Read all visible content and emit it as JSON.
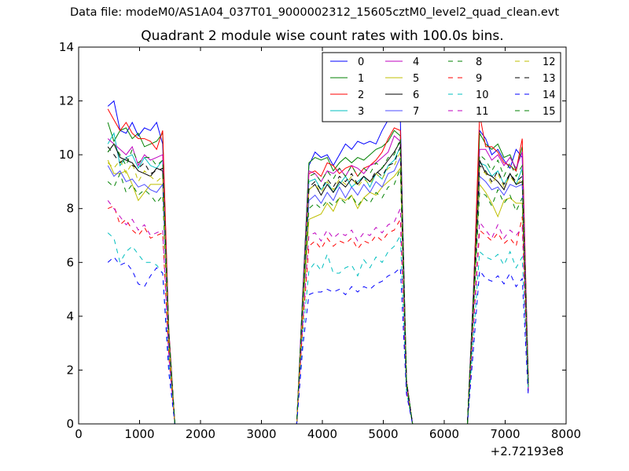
{
  "figure": {
    "suptitle": "Data file: modeM0/AS1A04_037T01_9000002312_15605cztM0_level2_quad_clean.evt"
  },
  "chart_data": {
    "type": "line",
    "title": "Quadrant 2 module wise count rates with 100.0s bins.",
    "xlabel": "",
    "ylabel": "",
    "x_offset_label": "+2.72193e8",
    "xlim": [
      0,
      8000
    ],
    "ylim": [
      0,
      14
    ],
    "xticks": [
      0,
      1000,
      2000,
      3000,
      4000,
      5000,
      6000,
      7000,
      8000
    ],
    "yticks": [
      0,
      2,
      4,
      6,
      8,
      10,
      12,
      14
    ],
    "legend_location": "top-right",
    "legend_columns": 4,
    "x": [
      480,
      580,
      680,
      780,
      880,
      980,
      1080,
      1180,
      1280,
      1380,
      1480,
      1580,
      1680,
      1780,
      1880,
      1980,
      2080,
      2180,
      2280,
      2380,
      2480,
      2580,
      2680,
      2780,
      2880,
      2980,
      3080,
      3180,
      3280,
      3380,
      3480,
      3580,
      3680,
      3780,
      3880,
      3980,
      4080,
      4180,
      4280,
      4380,
      4480,
      4580,
      4680,
      4780,
      4880,
      4980,
      5080,
      5180,
      5280,
      5380,
      5480,
      5580,
      5680,
      5780,
      5880,
      5980,
      6080,
      6180,
      6280,
      6380,
      6480,
      6580,
      6680,
      6780,
      6880,
      6980,
      7080,
      7180,
      7280,
      7380
    ],
    "series": [
      {
        "name": "0",
        "color": "#0000ff",
        "style": "solid",
        "values": [
          11.8,
          12.0,
          10.9,
          10.8,
          11.2,
          10.7,
          11.0,
          10.9,
          11.2,
          10.4,
          3.5,
          0,
          0,
          0,
          0,
          0,
          0,
          0,
          0,
          0,
          0,
          0,
          0,
          0,
          0,
          0,
          0,
          0,
          0,
          0,
          0,
          0,
          5.0,
          9.6,
          10.1,
          9.9,
          10.0,
          9.6,
          10.0,
          10.4,
          10.2,
          10.5,
          10.4,
          10.5,
          10.4,
          10.9,
          11.3,
          11.6,
          11.3,
          1.6,
          0,
          0,
          0,
          0,
          0,
          0,
          0,
          0,
          0,
          0,
          5.0,
          10.9,
          10.6,
          10.0,
          10.2,
          9.8,
          9.5,
          10.2,
          9.9,
          1.5
        ]
      },
      {
        "name": "1",
        "color": "#008000",
        "style": "solid",
        "values": [
          11.2,
          10.5,
          10.9,
          11.0,
          10.6,
          10.8,
          10.3,
          10.4,
          10.5,
          10.8,
          3.4,
          0,
          0,
          0,
          0,
          0,
          0,
          0,
          0,
          0,
          0,
          0,
          0,
          0,
          0,
          0,
          0,
          0,
          0,
          0,
          0,
          0,
          4.9,
          9.7,
          9.9,
          9.8,
          9.9,
          9.4,
          9.7,
          9.9,
          9.7,
          9.9,
          9.8,
          10.0,
          10.2,
          10.3,
          10.5,
          10.9,
          10.7,
          1.6,
          0,
          0,
          0,
          0,
          0,
          0,
          0,
          0,
          0,
          0,
          4.9,
          10.8,
          10.4,
          10.2,
          10.4,
          9.9,
          10.0,
          9.4,
          10.3,
          1.5
        ]
      },
      {
        "name": "2",
        "color": "#ff0000",
        "style": "solid",
        "values": [
          11.7,
          11.3,
          10.9,
          11.2,
          10.8,
          10.6,
          10.6,
          10.5,
          10.2,
          10.9,
          3.5,
          0,
          0,
          0,
          0,
          0,
          0,
          0,
          0,
          0,
          0,
          0,
          0,
          0,
          0,
          0,
          0,
          0,
          0,
          0,
          0,
          0,
          4.8,
          9.3,
          9.4,
          9.2,
          9.7,
          9.6,
          9.3,
          9.5,
          9.6,
          9.2,
          9.5,
          9.6,
          9.8,
          10.1,
          10.6,
          11.0,
          10.9,
          1.6,
          0,
          0,
          0,
          0,
          0,
          0,
          0,
          0,
          0,
          0,
          4.8,
          11.5,
          10.3,
          10.3,
          10.1,
          9.7,
          9.6,
          9.4,
          10.6,
          1.5
        ]
      },
      {
        "name": "3",
        "color": "#00bfbf",
        "style": "solid",
        "values": [
          10.4,
          10.8,
          9.6,
          9.9,
          10.0,
          9.5,
          9.9,
          9.6,
          9.5,
          9.8,
          3.3,
          0,
          0,
          0,
          0,
          0,
          0,
          0,
          0,
          0,
          0,
          0,
          0,
          0,
          0,
          0,
          0,
          0,
          0,
          0,
          0,
          0,
          4.7,
          9.0,
          9.1,
          8.7,
          9.0,
          8.6,
          8.9,
          9.2,
          8.8,
          9.0,
          9.2,
          8.8,
          9.3,
          9.1,
          9.6,
          9.8,
          10.3,
          1.5,
          0,
          0,
          0,
          0,
          0,
          0,
          0,
          0,
          0,
          0,
          4.6,
          9.7,
          9.6,
          9.2,
          9.4,
          8.9,
          9.3,
          8.9,
          9.5,
          1.4
        ]
      },
      {
        "name": "4",
        "color": "#bf00bf",
        "style": "solid",
        "values": [
          10.6,
          10.4,
          10.2,
          10.0,
          10.3,
          9.6,
          10.0,
          9.8,
          9.9,
          10.0,
          3.4,
          0,
          0,
          0,
          0,
          0,
          0,
          0,
          0,
          0,
          0,
          0,
          0,
          0,
          0,
          0,
          0,
          0,
          0,
          0,
          0,
          0,
          4.8,
          9.4,
          9.3,
          9.0,
          9.4,
          9.3,
          9.5,
          9.2,
          9.6,
          9.5,
          9.3,
          9.6,
          9.7,
          9.9,
          10.1,
          10.7,
          10.5,
          1.6,
          0,
          0,
          0,
          0,
          0,
          0,
          0,
          0,
          0,
          0,
          4.7,
          10.2,
          10.2,
          9.8,
          10.0,
          9.6,
          9.9,
          9.5,
          10.1,
          1.5
        ]
      },
      {
        "name": "5",
        "color": "#bfbf00",
        "style": "solid",
        "values": [
          9.8,
          9.3,
          9.3,
          9.4,
          8.9,
          8.3,
          8.6,
          8.9,
          8.9,
          8.9,
          3.0,
          0,
          0,
          0,
          0,
          0,
          0,
          0,
          0,
          0,
          0,
          0,
          0,
          0,
          0,
          0,
          0,
          0,
          0,
          0,
          0,
          0,
          4.2,
          7.6,
          7.7,
          7.8,
          8.2,
          7.9,
          8.4,
          8.3,
          8.5,
          8.0,
          8.4,
          8.6,
          8.5,
          8.8,
          9.0,
          9.2,
          9.5,
          1.5,
          0,
          0,
          0,
          0,
          0,
          0,
          0,
          0,
          0,
          0,
          4.2,
          8.9,
          8.6,
          8.2,
          7.7,
          8.3,
          8.4,
          8.2,
          8.2,
          1.4
        ]
      },
      {
        "name": "6",
        "color": "#000000",
        "style": "solid",
        "values": [
          10.1,
          10.4,
          9.9,
          9.8,
          9.7,
          9.4,
          9.3,
          9.2,
          9.5,
          9.4,
          3.3,
          0,
          0,
          0,
          0,
          0,
          0,
          0,
          0,
          0,
          0,
          0,
          0,
          0,
          0,
          0,
          0,
          0,
          0,
          0,
          0,
          0,
          4.6,
          8.7,
          8.9,
          8.5,
          8.9,
          8.6,
          9.0,
          8.8,
          9.1,
          8.9,
          9.2,
          9.0,
          9.3,
          9.5,
          9.8,
          10.1,
          10.5,
          1.5,
          0,
          0,
          0,
          0,
          0,
          0,
          0,
          0,
          0,
          0,
          4.5,
          9.8,
          9.3,
          9.2,
          9.0,
          8.7,
          9.3,
          8.9,
          9.0,
          1.4
        ]
      },
      {
        "name": "7",
        "color": "#4b4bff",
        "style": "solid",
        "values": [
          9.6,
          9.2,
          9.4,
          9.0,
          9.1,
          8.8,
          8.9,
          8.7,
          8.6,
          8.9,
          3.1,
          0,
          0,
          0,
          0,
          0,
          0,
          0,
          0,
          0,
          0,
          0,
          0,
          0,
          0,
          0,
          0,
          0,
          0,
          0,
          0,
          0,
          4.4,
          8.3,
          8.5,
          8.2,
          8.6,
          8.3,
          8.8,
          8.4,
          8.8,
          8.5,
          8.9,
          8.6,
          9.0,
          8.8,
          9.3,
          9.4,
          9.9,
          1.5,
          0,
          0,
          0,
          0,
          0,
          0,
          0,
          0,
          0,
          0,
          4.3,
          9.2,
          9.0,
          8.7,
          8.8,
          8.5,
          8.9,
          8.8,
          8.9,
          1.4
        ]
      },
      {
        "name": "8",
        "color": "#008000",
        "style": "dashed",
        "values": [
          9.0,
          8.8,
          9.3,
          8.6,
          8.9,
          8.5,
          8.7,
          8.5,
          8.2,
          8.5,
          3.0,
          0,
          0,
          0,
          0,
          0,
          0,
          0,
          0,
          0,
          0,
          0,
          0,
          0,
          0,
          0,
          0,
          0,
          0,
          0,
          0,
          0,
          4.3,
          8.0,
          8.2,
          8.0,
          8.3,
          8.1,
          8.4,
          8.2,
          8.5,
          8.1,
          8.4,
          8.2,
          8.6,
          8.4,
          8.8,
          8.9,
          9.5,
          1.4,
          0,
          0,
          0,
          0,
          0,
          0,
          0,
          0,
          0,
          0,
          4.2,
          8.6,
          8.5,
          8.1,
          8.7,
          8.2,
          8.5,
          7.9,
          8.4,
          1.3
        ]
      },
      {
        "name": "9",
        "color": "#ff0000",
        "style": "dashed",
        "values": [
          8.0,
          8.1,
          7.4,
          7.6,
          7.2,
          7.0,
          7.3,
          6.9,
          7.0,
          7.1,
          2.5,
          0,
          0,
          0,
          0,
          0,
          0,
          0,
          0,
          0,
          0,
          0,
          0,
          0,
          0,
          0,
          0,
          0,
          0,
          0,
          0,
          0,
          3.7,
          6.6,
          6.8,
          6.5,
          6.9,
          6.6,
          6.8,
          6.7,
          6.9,
          6.5,
          6.8,
          6.7,
          7.0,
          6.8,
          7.1,
          7.2,
          7.6,
          1.3,
          0,
          0,
          0,
          0,
          0,
          0,
          0,
          0,
          0,
          0,
          3.6,
          7.2,
          7.0,
          6.8,
          7.1,
          6.7,
          6.9,
          6.6,
          7.7,
          1.2
        ]
      },
      {
        "name": "10",
        "color": "#00bfbf",
        "style": "dashed",
        "values": [
          7.1,
          6.9,
          6.0,
          6.4,
          6.6,
          6.3,
          6.0,
          6.0,
          5.9,
          5.6,
          2.3,
          0,
          0,
          0,
          0,
          0,
          0,
          0,
          0,
          0,
          0,
          0,
          0,
          0,
          0,
          0,
          0,
          0,
          0,
          0,
          0,
          0,
          3.3,
          5.7,
          6.0,
          5.7,
          6.3,
          5.6,
          5.6,
          5.8,
          5.9,
          5.5,
          6.1,
          5.8,
          6.2,
          6.0,
          6.4,
          6.6,
          7.0,
          1.2,
          0,
          0,
          0,
          0,
          0,
          0,
          0,
          0,
          0,
          0,
          3.2,
          6.4,
          6.2,
          6.1,
          6.3,
          5.9,
          6.4,
          5.8,
          6.2,
          1.1
        ]
      },
      {
        "name": "11",
        "color": "#bf00bf",
        "style": "dashed",
        "values": [
          8.3,
          8.0,
          7.7,
          7.4,
          7.6,
          7.2,
          7.4,
          7.0,
          7.1,
          7.2,
          2.6,
          0,
          0,
          0,
          0,
          0,
          0,
          0,
          0,
          0,
          0,
          0,
          0,
          0,
          0,
          0,
          0,
          0,
          0,
          0,
          0,
          0,
          3.8,
          7.0,
          7.1,
          6.8,
          7.2,
          6.9,
          7.1,
          7.0,
          7.2,
          6.8,
          7.1,
          7.0,
          7.3,
          7.1,
          7.4,
          7.5,
          8.0,
          1.3,
          0,
          0,
          0,
          0,
          0,
          0,
          0,
          0,
          0,
          0,
          3.7,
          7.5,
          7.2,
          6.9,
          7.4,
          6.9,
          7.2,
          7.0,
          7.3,
          1.2
        ]
      },
      {
        "name": "12",
        "color": "#bfbf00",
        "style": "dashed",
        "values": [
          9.7,
          9.5,
          9.8,
          9.3,
          9.7,
          9.0,
          9.4,
          9.2,
          9.0,
          9.2,
          3.2,
          0,
          0,
          0,
          0,
          0,
          0,
          0,
          0,
          0,
          0,
          0,
          0,
          0,
          0,
          0,
          0,
          0,
          0,
          0,
          0,
          0,
          4.5,
          8.7,
          8.9,
          8.6,
          9.0,
          8.7,
          9.1,
          8.9,
          9.2,
          8.8,
          9.1,
          8.9,
          9.3,
          9.1,
          9.5,
          9.6,
          10.1,
          1.5,
          0,
          0,
          0,
          0,
          0,
          0,
          0,
          0,
          0,
          0,
          4.4,
          9.5,
          9.3,
          8.9,
          9.3,
          8.8,
          9.2,
          8.9,
          9.1,
          1.4
        ]
      },
      {
        "name": "13",
        "color": "#000000",
        "style": "dashed",
        "values": [
          10.3,
          10.0,
          9.7,
          9.9,
          9.6,
          9.5,
          9.7,
          9.3,
          9.4,
          9.5,
          3.3,
          0,
          0,
          0,
          0,
          0,
          0,
          0,
          0,
          0,
          0,
          0,
          0,
          0,
          0,
          0,
          0,
          0,
          0,
          0,
          0,
          0,
          4.6,
          8.8,
          9.0,
          8.7,
          9.1,
          8.8,
          9.2,
          9.0,
          9.3,
          8.9,
          9.2,
          9.0,
          9.4,
          9.2,
          9.6,
          9.7,
          10.3,
          1.5,
          0,
          0,
          0,
          0,
          0,
          0,
          0,
          0,
          0,
          0,
          4.5,
          9.6,
          9.4,
          9.0,
          9.4,
          8.9,
          9.3,
          9.0,
          9.2,
          1.4
        ]
      },
      {
        "name": "14",
        "color": "#0000ff",
        "style": "dashed",
        "values": [
          6.0,
          6.2,
          5.9,
          6.0,
          5.7,
          5.2,
          5.1,
          5.5,
          5.8,
          5.6,
          1.9,
          0,
          0,
          0,
          0,
          0,
          0,
          0,
          0,
          0,
          0,
          0,
          0,
          0,
          0,
          0,
          0,
          0,
          0,
          0,
          0,
          0,
          2.9,
          4.8,
          4.9,
          4.9,
          5.0,
          4.9,
          5.0,
          4.8,
          5.1,
          4.9,
          5.1,
          5.0,
          5.2,
          5.3,
          5.5,
          5.6,
          5.8,
          1.1,
          0,
          0,
          0,
          0,
          0,
          0,
          0,
          0,
          0,
          0,
          2.8,
          5.7,
          5.4,
          5.3,
          5.5,
          5.2,
          5.6,
          5.1,
          5.4,
          1.0
        ]
      },
      {
        "name": "15",
        "color": "#008000",
        "style": "dashed",
        "values": [
          10.1,
          10.4,
          10.0,
          9.6,
          10.2,
          9.7,
          9.9,
          9.9,
          9.6,
          9.8,
          3.4,
          0,
          0,
          0,
          0,
          0,
          0,
          0,
          0,
          0,
          0,
          0,
          0,
          0,
          0,
          0,
          0,
          0,
          0,
          0,
          0,
          0,
          4.7,
          9.2,
          9.3,
          9.0,
          9.4,
          9.1,
          9.5,
          9.2,
          9.6,
          9.2,
          9.5,
          9.3,
          9.7,
          9.5,
          9.9,
          10.0,
          10.6,
          1.6,
          0,
          0,
          0,
          0,
          0,
          0,
          0,
          0,
          0,
          0,
          4.6,
          10.0,
          9.8,
          9.4,
          9.8,
          9.2,
          9.7,
          9.2,
          9.6,
          1.5
        ]
      }
    ]
  }
}
